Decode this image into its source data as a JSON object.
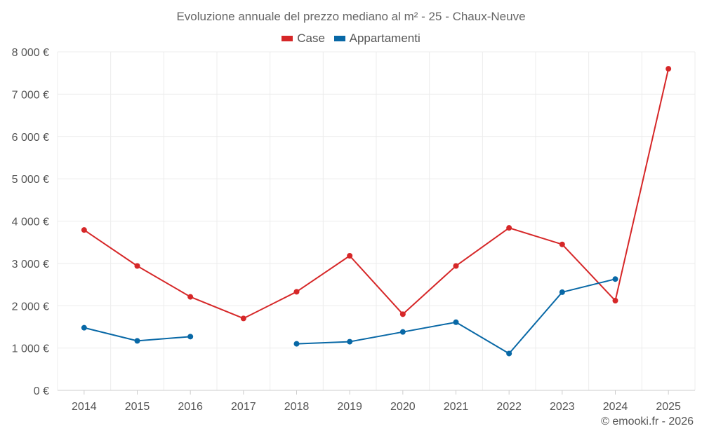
{
  "chart_data": {
    "type": "line",
    "title": "Evoluzione annuale del prezzo mediano al m² - 25 - Chaux-Neuve",
    "xlabel": "",
    "ylabel": "",
    "ylim": [
      0,
      8000
    ],
    "y_ticks": [
      0,
      1000,
      2000,
      3000,
      4000,
      5000,
      6000,
      7000,
      8000
    ],
    "y_tick_labels": [
      "0 €",
      "1 000 €",
      "2 000 €",
      "3 000 €",
      "4 000 €",
      "5 000 €",
      "6 000 €",
      "7 000 €",
      "8 000 €"
    ],
    "categories": [
      "2014",
      "2015",
      "2016",
      "2017",
      "2018",
      "2019",
      "2020",
      "2021",
      "2022",
      "2023",
      "2024",
      "2025"
    ],
    "grid": true,
    "legend_position": "top-center",
    "series": [
      {
        "name": "Case",
        "color": "#d62728",
        "values": [
          3790,
          2940,
          2210,
          1700,
          2330,
          3180,
          1800,
          2940,
          3840,
          3450,
          2120,
          7600
        ]
      },
      {
        "name": "Appartamenti",
        "color": "#0868a6",
        "values": [
          1480,
          1170,
          1270,
          null,
          1100,
          1150,
          1380,
          1610,
          870,
          2320,
          2630,
          null
        ]
      }
    ]
  },
  "footer": {
    "credit": "© emooki.fr - 2026"
  }
}
